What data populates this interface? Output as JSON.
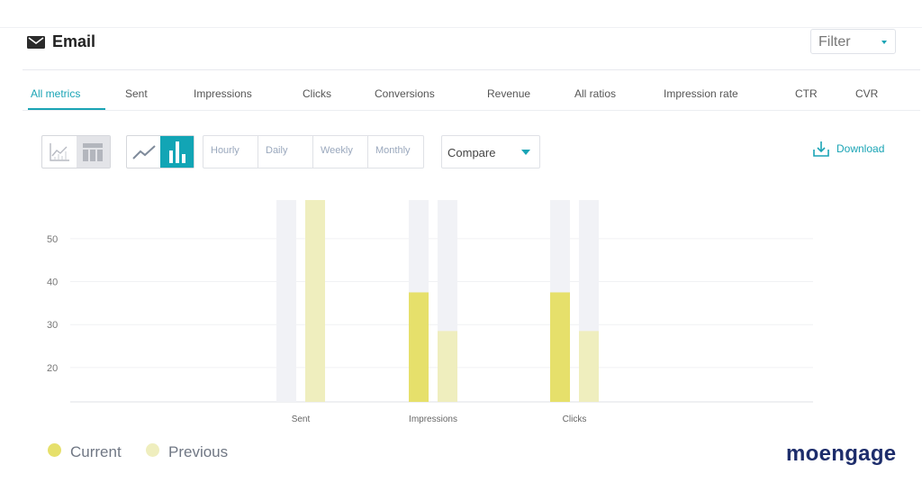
{
  "header": {
    "title": "Email",
    "icon": "envelope-icon",
    "filter": {
      "value": "Filter"
    }
  },
  "tabs": [
    {
      "label": "All metrics",
      "active": true
    },
    {
      "label": "Sent"
    },
    {
      "label": "Impressions"
    },
    {
      "label": "Clicks"
    },
    {
      "label": "Conversions"
    },
    {
      "label": "Revenue"
    },
    {
      "label": "All ratios"
    },
    {
      "label": "Impression rate"
    },
    {
      "label": "CTR"
    },
    {
      "label": "CVR"
    }
  ],
  "toolbar": {
    "view_toggle": [
      "line-chart-view-icon",
      "table-view-icon"
    ],
    "chart_type_toggle": [
      "line-chart-icon",
      "bar-chart-icon"
    ],
    "selected_chart_type": "bar",
    "periods": [
      "Hourly",
      "Daily",
      "Weekly",
      "Monthly"
    ],
    "compare": "Compare",
    "download": "Download"
  },
  "chart_data": {
    "type": "bar",
    "categories": [
      "Sent",
      "Impressions",
      "Clicks"
    ],
    "ylim": [
      12,
      59
    ],
    "yticks": [
      20,
      30,
      40,
      50
    ],
    "series": [
      {
        "name": "Current",
        "values": [
          12,
          37.5,
          37.5
        ],
        "color": "#e6e06b"
      },
      {
        "name": "Previous",
        "values": [
          59,
          28.5,
          28.5
        ],
        "color": "#efeebe"
      }
    ],
    "track_color": "#f1f2f6",
    "grid": true
  },
  "legend": [
    {
      "label": "Current",
      "color": "#e6e06b"
    },
    {
      "label": "Previous",
      "color": "#efeebe"
    }
  ],
  "brand": {
    "logo_text": "moengage",
    "color": "#1d2d6b"
  },
  "colors": {
    "accent": "#1aa4b5"
  }
}
